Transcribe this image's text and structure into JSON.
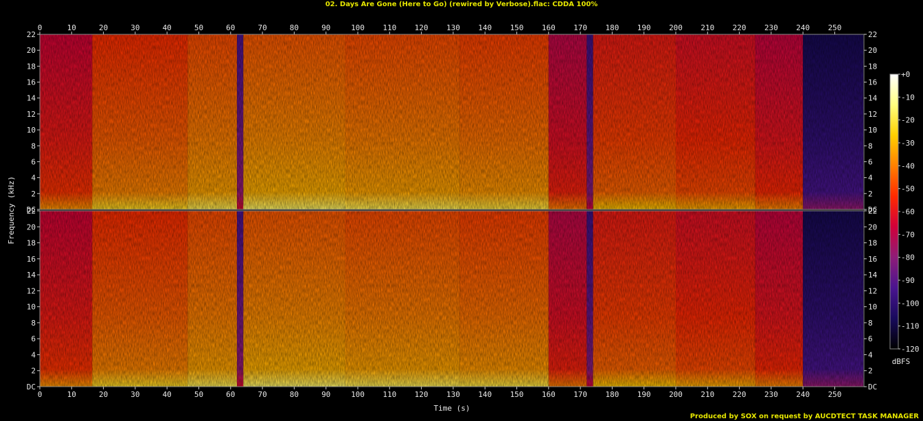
{
  "title": "02. Days Are Gone (Here to Go) (rewired by Verbose).flac: CDDA 100%",
  "credit": "Produced by SOX on request by AUCDTECT TASK MANAGER",
  "chart_data": {
    "type": "heatmap",
    "xlabel": "Time (s)",
    "ylabel": "Frequency (kHz)",
    "xlim": [
      0,
      259
    ],
    "x_ticks": [
      0,
      10,
      20,
      30,
      40,
      50,
      60,
      70,
      80,
      90,
      100,
      110,
      120,
      130,
      140,
      150,
      160,
      170,
      180,
      190,
      200,
      210,
      220,
      230,
      240,
      250
    ],
    "ylim": [
      0,
      22
    ],
    "y_ticks": [
      "DC",
      "2",
      "4",
      "6",
      "8",
      "10",
      "12",
      "14",
      "16",
      "18",
      "20",
      "22"
    ],
    "channels": 2,
    "colorbar": {
      "label": "dBFS",
      "range": [
        -120,
        0
      ],
      "ticks": [
        "+0",
        "-10",
        "-20",
        "-30",
        "-40",
        "-50",
        "-60",
        "-70",
        "-80",
        "-90",
        "-100",
        "-110",
        "-120"
      ],
      "colors": [
        "#ffffff",
        "#ffff80",
        "#ffd000",
        "#ff8000",
        "#ff2a00",
        "#d2003a",
        "#8e1c78",
        "#4a1490",
        "#180a5c",
        "#000000"
      ]
    },
    "segments": [
      {
        "start": 0,
        "end": 16.5,
        "level_db": -58
      },
      {
        "start": 16.5,
        "end": 46.5,
        "level_db": -45
      },
      {
        "start": 46.5,
        "end": 62,
        "level_db": -40
      },
      {
        "start": 62,
        "end": 64,
        "level_db": -85
      },
      {
        "start": 64,
        "end": 96,
        "level_db": -38
      },
      {
        "start": 96,
        "end": 132,
        "level_db": -40
      },
      {
        "start": 132,
        "end": 160,
        "level_db": -42
      },
      {
        "start": 160,
        "end": 172,
        "level_db": -62
      },
      {
        "start": 172,
        "end": 174,
        "level_db": -88
      },
      {
        "start": 174,
        "end": 200,
        "level_db": -50
      },
      {
        "start": 200,
        "end": 225,
        "level_db": -54
      },
      {
        "start": 225,
        "end": 240,
        "level_db": -60
      },
      {
        "start": 240,
        "end": 259,
        "level_db": -100
      }
    ]
  }
}
